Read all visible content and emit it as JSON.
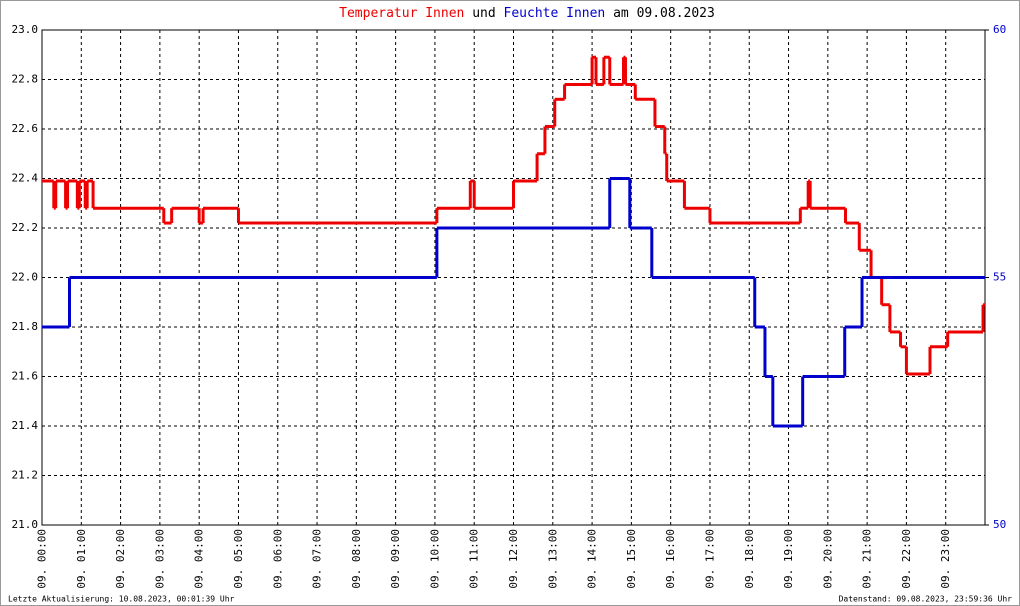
{
  "chart_data": {
    "type": "step-line",
    "title": [
      "Temperatur Innen",
      "und",
      "Feuchte Innen",
      "am 09.08.2023"
    ],
    "footer_left": "Letzte Aktualisierung: 10.08.2023, 00:01:39 Uhr",
    "footer_right": "Datenstand: 09.08.2023, 23:59:36 Uhr",
    "xlim": [
      0,
      24
    ],
    "xticks": [
      {
        "value": 0,
        "label": "09. 00:00"
      },
      {
        "value": 1,
        "label": "09. 01:00"
      },
      {
        "value": 2,
        "label": "09. 02:00"
      },
      {
        "value": 3,
        "label": "09. 03:00"
      },
      {
        "value": 4,
        "label": "09. 04:00"
      },
      {
        "value": 5,
        "label": "09. 05:00"
      },
      {
        "value": 6,
        "label": "09. 06:00"
      },
      {
        "value": 7,
        "label": "09. 07:00"
      },
      {
        "value": 8,
        "label": "09. 08:00"
      },
      {
        "value": 9,
        "label": "09. 09:00"
      },
      {
        "value": 10,
        "label": "09. 10:00"
      },
      {
        "value": 11,
        "label": "09. 11:00"
      },
      {
        "value": 12,
        "label": "09. 12:00"
      },
      {
        "value": 13,
        "label": "09. 13:00"
      },
      {
        "value": 14,
        "label": "09. 14:00"
      },
      {
        "value": 15,
        "label": "09. 15:00"
      },
      {
        "value": 16,
        "label": "09. 16:00"
      },
      {
        "value": 17,
        "label": "09. 17:00"
      },
      {
        "value": 18,
        "label": "09. 18:00"
      },
      {
        "value": 19,
        "label": "09. 19:00"
      },
      {
        "value": 20,
        "label": "09. 20:00"
      },
      {
        "value": 21,
        "label": "09. 21:00"
      },
      {
        "value": 22,
        "label": "09. 22:00"
      },
      {
        "value": 23,
        "label": "09. 23:00"
      }
    ],
    "ylim": [
      21,
      23
    ],
    "yticks": [
      {
        "value": 21,
        "label": "21.0"
      },
      21.2,
      21.4,
      21.6,
      21.8,
      {
        "value": 22,
        "label": "22.0"
      },
      22.2,
      22.4,
      22.6,
      22.8,
      {
        "value": 23,
        "label": "23.0"
      }
    ],
    "y2lim": [
      50,
      60
    ],
    "y2ticks": [
      50,
      55,
      60
    ],
    "grid": true,
    "series": [
      {
        "name": "Temperatur Innen",
        "color": "#ee0000",
        "x": [
          0,
          0.3,
          0.35,
          0.6,
          0.65,
          0.9,
          0.95,
          1.1,
          1.15,
          1.3,
          3.1,
          3.3,
          4.0,
          4.1,
          5.0,
          10.05,
          10.9,
          11.0,
          12.0,
          12.6,
          12.8,
          13.05,
          13.3,
          14.0,
          14.1,
          14.3,
          14.45,
          14.8,
          14.85,
          15.1,
          15.6,
          15.85,
          15.9,
          16.35,
          17.0,
          19.3,
          19.5,
          19.55,
          20.45,
          20.8,
          21.1,
          21.37,
          21.58,
          21.85,
          22.0,
          22.6,
          23.05,
          23.95
        ],
        "values": [
          22.39,
          22.28,
          22.39,
          22.28,
          22.39,
          22.28,
          22.39,
          22.28,
          22.39,
          22.28,
          22.22,
          22.28,
          22.22,
          22.28,
          22.22,
          22.28,
          22.39,
          22.28,
          22.39,
          22.5,
          22.61,
          22.72,
          22.78,
          22.89,
          22.78,
          22.89,
          22.78,
          22.89,
          22.78,
          22.72,
          22.61,
          22.5,
          22.39,
          22.28,
          22.22,
          22.28,
          22.39,
          22.28,
          22.22,
          22.11,
          22.0,
          21.89,
          21.78,
          21.72,
          21.61,
          21.72,
          21.78,
          21.89
        ]
      },
      {
        "name": "Feuchte Innen",
        "color": "#0000cc",
        "axis": "y2",
        "x": [
          0,
          0.7,
          10.05,
          14.45,
          14.96,
          15.52,
          18.14,
          18.4,
          18.6,
          19.36,
          20.43,
          20.87
        ],
        "values": [
          54,
          55,
          56,
          57,
          56,
          55,
          54,
          53,
          52,
          53,
          54,
          55
        ]
      }
    ]
  }
}
